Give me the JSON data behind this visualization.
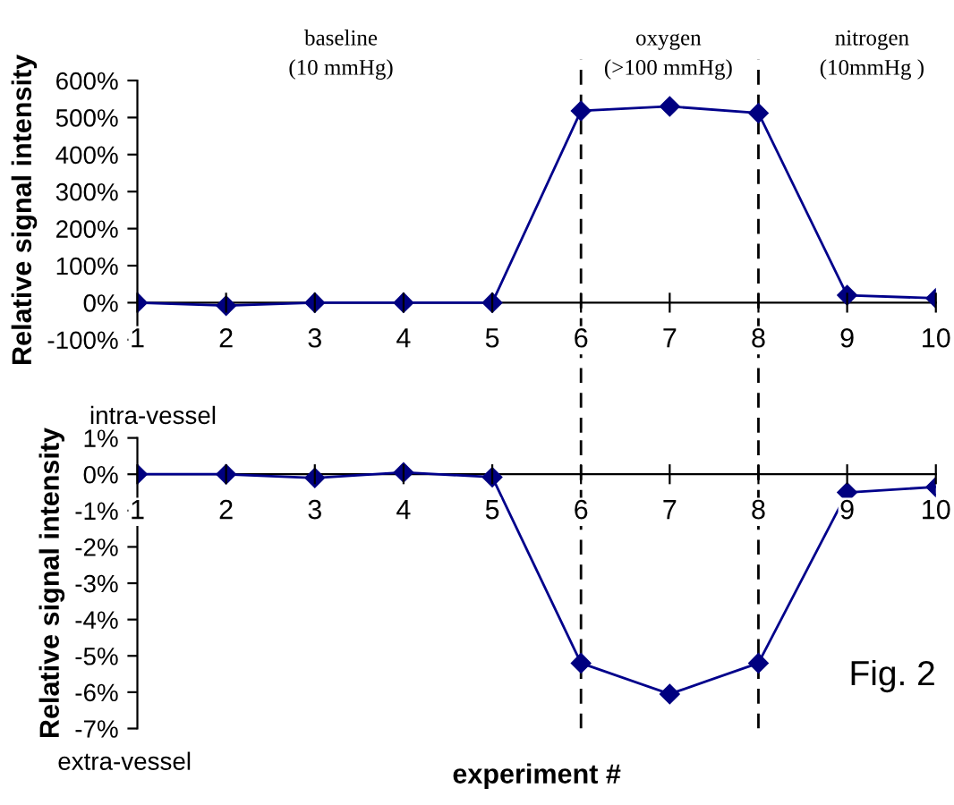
{
  "chart_data": [
    {
      "type": "line",
      "ylabel": "Relative signal intensity",
      "categories": [
        "1",
        "2",
        "3",
        "4",
        "5",
        "6",
        "7",
        "8",
        "9",
        "10"
      ],
      "series": [
        {
          "color": "#00008b",
          "values": [
            0,
            -8,
            0,
            0,
            0,
            518,
            530,
            512,
            20,
            12
          ]
        }
      ],
      "marker": "diamond",
      "line_style": "solid",
      "grid": false,
      "legend": false,
      "ylim": [
        -100,
        600
      ],
      "yticks": [
        {
          "value": -100,
          "label": "-100%"
        },
        {
          "value": 0,
          "label": "0%"
        },
        {
          "value": 100,
          "label": "100%"
        },
        {
          "value": 200,
          "label": "200%"
        },
        {
          "value": 300,
          "label": "300%"
        },
        {
          "value": 400,
          "label": "400%"
        },
        {
          "value": 500,
          "label": "500%"
        },
        {
          "value": 600,
          "label": "600%"
        }
      ],
      "ref_lines": [
        {
          "axis": "x",
          "value": "6",
          "color": "#000000",
          "line_style": "dashed"
        },
        {
          "axis": "x",
          "value": "8",
          "color": "#000000",
          "line_style": "dashed"
        }
      ],
      "annotations": [
        "baseline\n(10 mmHg)",
        "oxygen\n(>100 mmHg)",
        "nitrogen\n(10mmHg )",
        "intra-vessel"
      ]
    },
    {
      "type": "line",
      "ylabel": "Relative signal intensity",
      "xlabel": "experiment #",
      "categories": [
        "1",
        "2",
        "3",
        "4",
        "5",
        "6",
        "7",
        "8",
        "9",
        "10"
      ],
      "series": [
        {
          "color": "#00008b",
          "values": [
            0,
            0,
            -0.1,
            0.05,
            -0.08,
            -5.2,
            -6.05,
            -5.2,
            -0.5,
            -0.35
          ]
        }
      ],
      "marker": "diamond",
      "line_style": "solid",
      "grid": false,
      "legend": false,
      "ylim": [
        -7,
        1
      ],
      "yticks": [
        {
          "value": -7,
          "label": "-7%"
        },
        {
          "value": -6,
          "label": "-6%"
        },
        {
          "value": -5,
          "label": "-5%"
        },
        {
          "value": -4,
          "label": "-4%"
        },
        {
          "value": -3,
          "label": "-3%"
        },
        {
          "value": -2,
          "label": "-2%"
        },
        {
          "value": -1,
          "label": "-1%"
        },
        {
          "value": 0,
          "label": "0%"
        },
        {
          "value": 1,
          "label": "1%"
        }
      ],
      "ref_lines": [
        {
          "axis": "x",
          "value": "6",
          "color": "#000000",
          "line_style": "dashed"
        },
        {
          "axis": "x",
          "value": "8",
          "color": "#000000",
          "line_style": "dashed"
        }
      ],
      "annotations": [
        "extra-vessel",
        "Fig. 2"
      ]
    }
  ]
}
